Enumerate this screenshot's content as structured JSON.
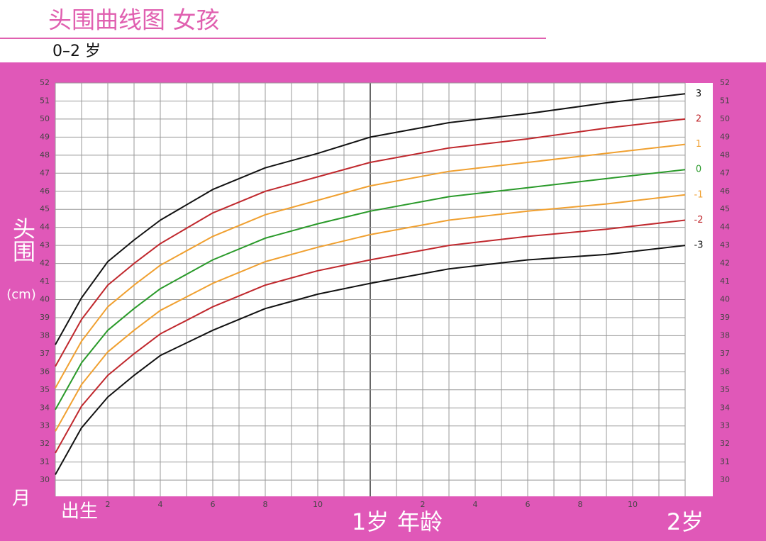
{
  "chart_data": {
    "type": "line",
    "title": "头围曲线图 女孩",
    "subtitle": "0–2 岁",
    "ylabel": "头围",
    "y_unit": "(cm)",
    "x_unit": "月",
    "xlabel": "年龄",
    "x": [
      0,
      1,
      2,
      3,
      4,
      6,
      8,
      10,
      12,
      15,
      18,
      21,
      24
    ],
    "series": [
      {
        "name": "3",
        "color": "#111111",
        "values": [
          37.5,
          40.1,
          42.1,
          43.3,
          44.4,
          46.1,
          47.3,
          48.1,
          49.0,
          49.8,
          50.3,
          50.9,
          51.4
        ]
      },
      {
        "name": "2",
        "color": "#c0282d",
        "values": [
          36.3,
          38.9,
          40.8,
          42.0,
          43.1,
          44.8,
          46.0,
          46.8,
          47.6,
          48.4,
          48.9,
          49.5,
          50.0
        ]
      },
      {
        "name": "1",
        "color": "#f0a030",
        "values": [
          35.1,
          37.7,
          39.6,
          40.8,
          41.9,
          43.5,
          44.7,
          45.5,
          46.3,
          47.1,
          47.6,
          48.1,
          48.6
        ]
      },
      {
        "name": "0",
        "color": "#2a9a2a",
        "values": [
          33.9,
          36.5,
          38.3,
          39.5,
          40.6,
          42.2,
          43.4,
          44.2,
          44.9,
          45.7,
          46.2,
          46.7,
          47.2
        ]
      },
      {
        "name": "-1",
        "color": "#f0a030",
        "values": [
          32.7,
          35.3,
          37.1,
          38.3,
          39.4,
          40.9,
          42.1,
          42.9,
          43.6,
          44.4,
          44.9,
          45.3,
          45.8
        ]
      },
      {
        "name": "-2",
        "color": "#c0282d",
        "values": [
          31.5,
          34.1,
          35.8,
          37.0,
          38.1,
          39.6,
          40.8,
          41.6,
          42.2,
          43.0,
          43.5,
          43.9,
          44.4
        ]
      },
      {
        "name": "-3",
        "color": "#111111",
        "values": [
          30.3,
          32.9,
          34.6,
          35.8,
          36.9,
          38.3,
          39.5,
          40.3,
          40.9,
          41.7,
          42.2,
          42.5,
          43.0
        ]
      }
    ],
    "xlim": [
      0,
      24
    ],
    "xticks": [
      {
        "value": 0,
        "label": "出生"
      },
      2,
      4,
      6,
      8,
      10,
      {
        "value": 12,
        "label": "1岁"
      },
      {
        "value": 14,
        "label": "2"
      },
      {
        "value": 16,
        "label": "4"
      },
      {
        "value": 18,
        "label": "6"
      },
      {
        "value": 20,
        "label": "8"
      },
      {
        "value": 22,
        "label": "10"
      },
      {
        "value": 24,
        "label": "2岁"
      }
    ],
    "xgrid": [
      0,
      1,
      2,
      3,
      4,
      5,
      6,
      7,
      8,
      9,
      10,
      11,
      12,
      13,
      14,
      15,
      16,
      17,
      18,
      19,
      20,
      21,
      22,
      23,
      24
    ],
    "ylim": [
      29.1,
      52
    ],
    "yticks": [
      30,
      31,
      32,
      33,
      34,
      35,
      36,
      37,
      38,
      39,
      40,
      41,
      42,
      43,
      44,
      45,
      46,
      47,
      48,
      49,
      50,
      51,
      52
    ],
    "grid": true
  }
}
